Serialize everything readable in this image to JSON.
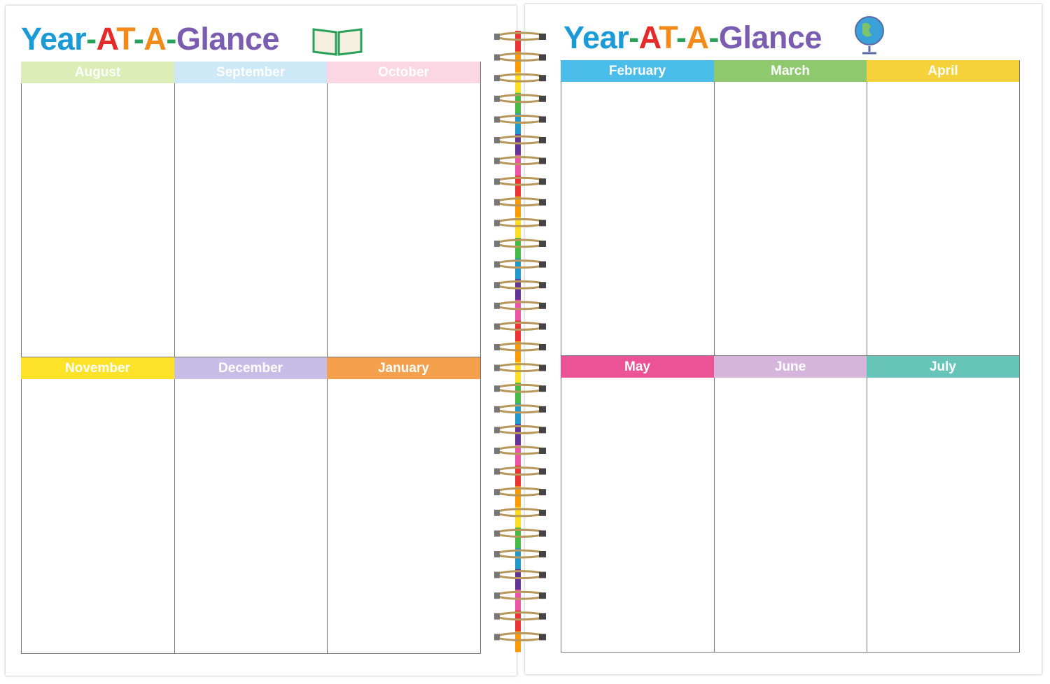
{
  "pages": [
    {
      "title": "Year-AT-A-Glance",
      "months": [
        {
          "name": "August",
          "color": "#dcedb8"
        },
        {
          "name": "September",
          "color": "#cde9f8"
        },
        {
          "name": "October",
          "color": "#fbd6e3"
        },
        {
          "name": "November",
          "color": "#fde227"
        },
        {
          "name": "December",
          "color": "#c8bde6"
        },
        {
          "name": "January",
          "color": "#f5a04c"
        }
      ]
    },
    {
      "title": "Year-AT-A-Glance",
      "months": [
        {
          "name": "February",
          "color": "#4bbdea"
        },
        {
          "name": "March",
          "color": "#8ec96d"
        },
        {
          "name": "April",
          "color": "#f6d23a"
        },
        {
          "name": "May",
          "color": "#ec5396"
        },
        {
          "name": "June",
          "color": "#d5b5db"
        },
        {
          "name": "July",
          "color": "#66c4b9"
        }
      ]
    }
  ]
}
